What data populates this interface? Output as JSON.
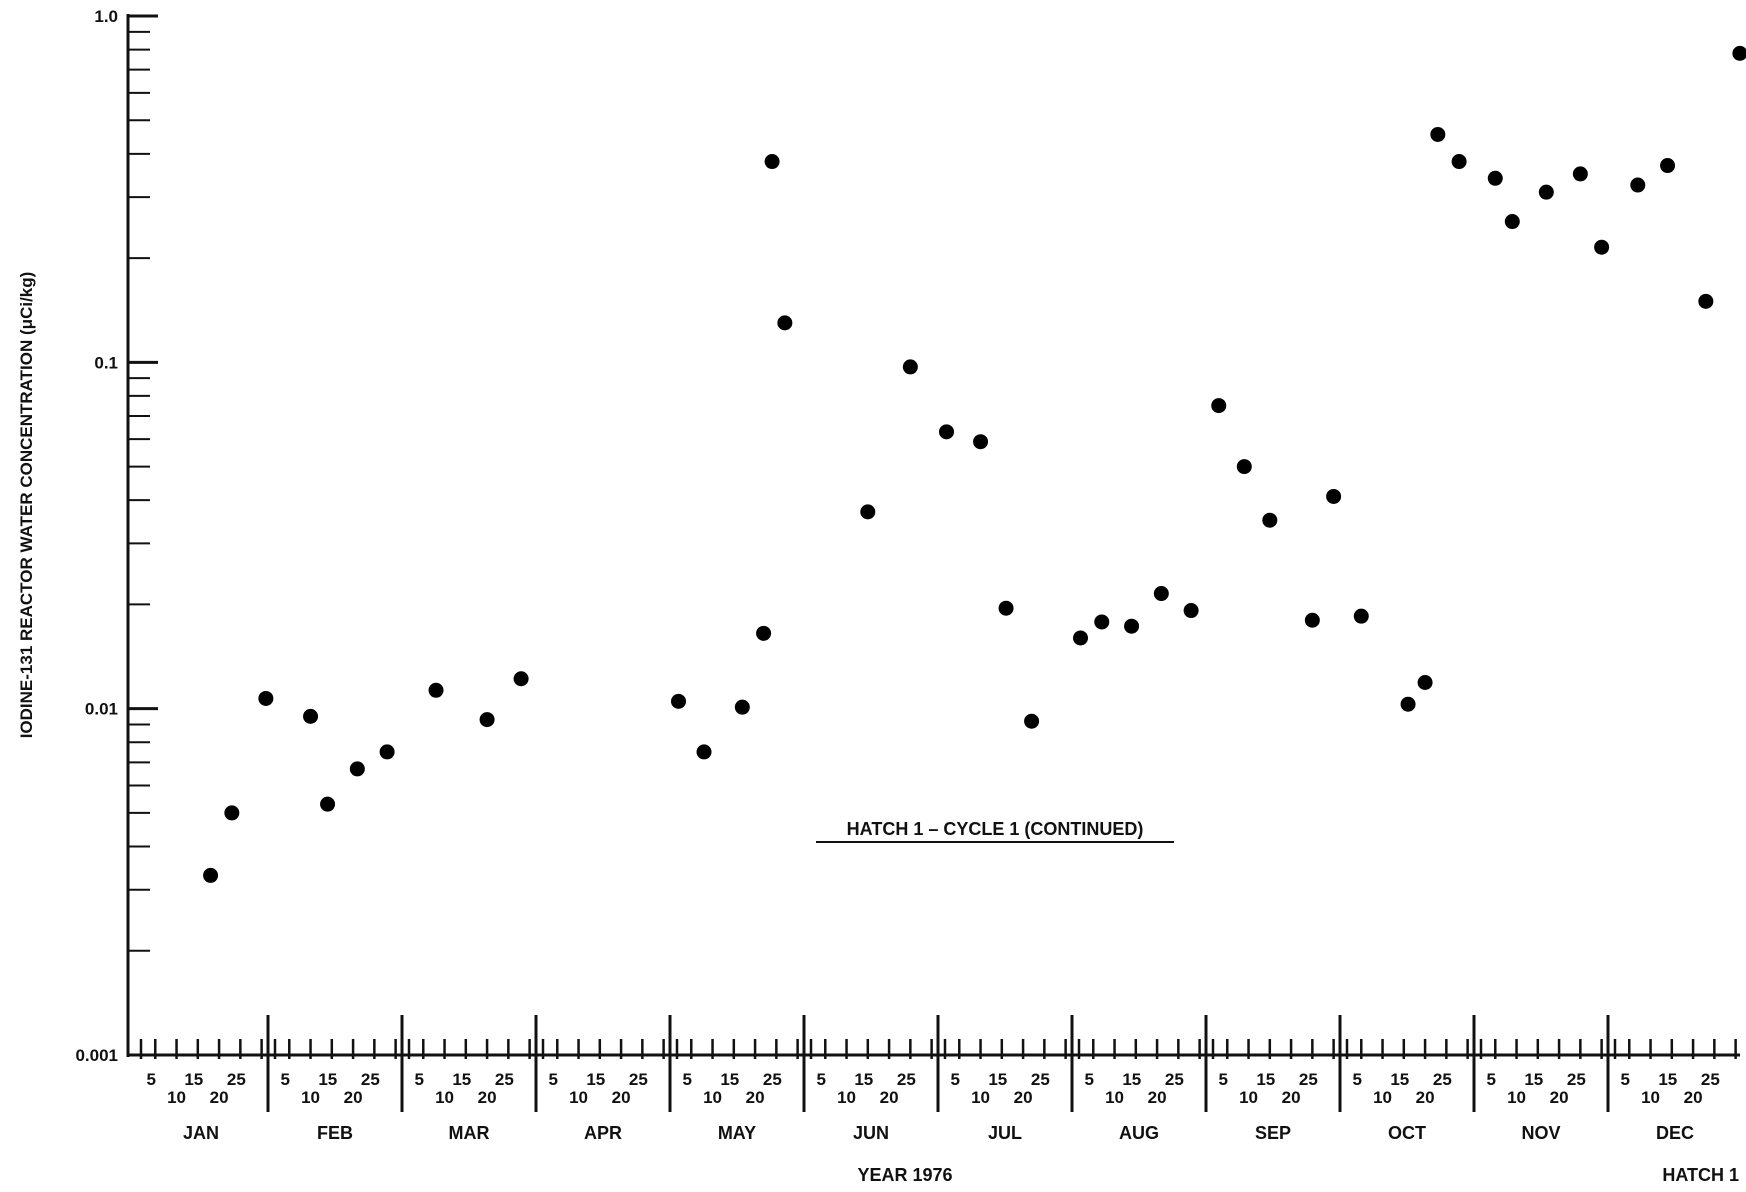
{
  "chart_data": {
    "type": "scatter",
    "title": "HATCH 1 – CYCLE 1 (CONTINUED)",
    "xlabel": "YEAR 1976",
    "ylabel": "IODINE-131 REACTOR WATER CONCENTRATION (μCi/kg)",
    "corner_label": "HATCH 1",
    "y_scale": "log",
    "ylim": [
      0.001,
      1.0
    ],
    "y_ticks": [
      "1.0",
      "0.1",
      "0.01",
      "0.001"
    ],
    "xlim": [
      "1976-01-01",
      "1976-12-31"
    ],
    "grid": false,
    "months": [
      "JAN",
      "FEB",
      "MAR",
      "APR",
      "MAY",
      "JUN",
      "JUL",
      "AUG",
      "SEP",
      "OCT",
      "NOV",
      "DEC"
    ],
    "day_ticks_top": [
      "5",
      "15",
      "25"
    ],
    "day_ticks_bottom": [
      "10",
      "20"
    ],
    "series": [
      {
        "color": "#000000",
        "points": [
          {
            "x": "1976-01-18",
            "y": 0.0033
          },
          {
            "x": "1976-01-23",
            "y": 0.005
          },
          {
            "x": "1976-01-31",
            "y": 0.0107
          },
          {
            "x": "1976-02-10",
            "y": 0.0095
          },
          {
            "x": "1976-02-14",
            "y": 0.0053
          },
          {
            "x": "1976-02-21",
            "y": 0.0067
          },
          {
            "x": "1976-02-28",
            "y": 0.0075
          },
          {
            "x": "1976-03-08",
            "y": 0.0113
          },
          {
            "x": "1976-03-20",
            "y": 0.0093
          },
          {
            "x": "1976-03-28",
            "y": 0.0122
          },
          {
            "x": "1976-05-02",
            "y": 0.0105
          },
          {
            "x": "1976-05-08",
            "y": 0.0075
          },
          {
            "x": "1976-05-17",
            "y": 0.0101
          },
          {
            "x": "1976-05-22",
            "y": 0.0165
          },
          {
            "x": "1976-05-24",
            "y": 0.38
          },
          {
            "x": "1976-05-27",
            "y": 0.13
          },
          {
            "x": "1976-06-15",
            "y": 0.037
          },
          {
            "x": "1976-06-25",
            "y": 0.097
          },
          {
            "x": "1976-07-02",
            "y": 0.063
          },
          {
            "x": "1976-07-10",
            "y": 0.059
          },
          {
            "x": "1976-07-16",
            "y": 0.0195
          },
          {
            "x": "1976-07-22",
            "y": 0.0092
          },
          {
            "x": "1976-08-02",
            "y": 0.016
          },
          {
            "x": "1976-08-07",
            "y": 0.0178
          },
          {
            "x": "1976-08-14",
            "y": 0.0173
          },
          {
            "x": "1976-08-21",
            "y": 0.0215
          },
          {
            "x": "1976-08-28",
            "y": 0.0192
          },
          {
            "x": "1976-09-03",
            "y": 0.075
          },
          {
            "x": "1976-09-09",
            "y": 0.05
          },
          {
            "x": "1976-09-15",
            "y": 0.035
          },
          {
            "x": "1976-09-25",
            "y": 0.018
          },
          {
            "x": "1976-09-30",
            "y": 0.041
          },
          {
            "x": "1976-10-05",
            "y": 0.0185
          },
          {
            "x": "1976-10-16",
            "y": 0.0103
          },
          {
            "x": "1976-10-20",
            "y": 0.0119
          },
          {
            "x": "1976-10-23",
            "y": 0.455
          },
          {
            "x": "1976-10-28",
            "y": 0.38
          },
          {
            "x": "1976-11-05",
            "y": 0.34
          },
          {
            "x": "1976-11-09",
            "y": 0.255
          },
          {
            "x": "1976-11-17",
            "y": 0.31
          },
          {
            "x": "1976-11-25",
            "y": 0.35
          },
          {
            "x": "1976-11-30",
            "y": 0.215
          },
          {
            "x": "1976-12-07",
            "y": 0.325
          },
          {
            "x": "1976-12-14",
            "y": 0.37
          },
          {
            "x": "1976-12-23",
            "y": 0.15
          },
          {
            "x": "1976-12-31",
            "y": 0.78
          }
        ]
      }
    ]
  }
}
